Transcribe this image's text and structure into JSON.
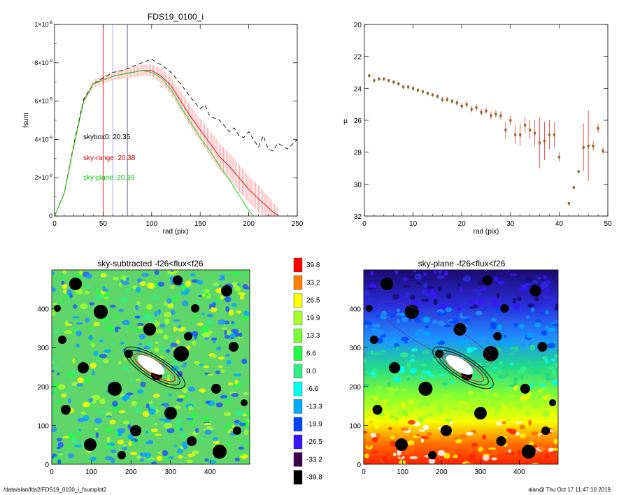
{
  "footer": {
    "left": "/data/alan/fds2/FDS19_0100_i_fsumplot2",
    "right": "alan@  Thu Oct 17 11:47:10 2019"
  },
  "chart_data": [
    {
      "type": "line",
      "title": "FDS19_0100_i",
      "xlabel": "rad (pix)",
      "ylabel": "fsum",
      "xlim": [
        0,
        250
      ],
      "ylim": [
        0,
        1e-08
      ],
      "xticks": [
        "0",
        "50",
        "100",
        "150",
        "200",
        "250"
      ],
      "yticks": [
        {
          "v": 0,
          "m": "0",
          "e": ""
        },
        {
          "v": 2e-09,
          "m": "2×10",
          "e": "-9"
        },
        {
          "v": 4e-09,
          "m": "4×10",
          "e": "-9"
        },
        {
          "v": 6e-09,
          "m": "6×10",
          "e": "-9"
        },
        {
          "v": 8e-09,
          "m": "8×10",
          "e": "-9"
        },
        {
          "v": 1e-08,
          "m": "1×10",
          "e": "-8"
        }
      ],
      "vlines": [
        {
          "x": 50,
          "color": "#ff0000"
        },
        {
          "x": 60,
          "color": "#9999ff"
        },
        {
          "x": 75,
          "color": "#555577"
        }
      ],
      "series": [
        {
          "style": "dashed",
          "color": "#000000",
          "x": [
            0,
            10,
            20,
            30,
            40,
            50,
            60,
            70,
            80,
            90,
            100,
            105,
            110,
            120,
            130,
            140,
            150,
            155,
            160,
            170,
            180,
            185,
            190,
            195,
            200,
            205,
            210,
            215,
            220,
            225,
            230,
            240,
            250
          ],
          "y": [
            0,
            1.2e-09,
            3.8e-09,
            6.1e-09,
            6.9e-09,
            7.2e-09,
            7.5e-09,
            7.6e-09,
            7.8e-09,
            8e-09,
            8.2e-09,
            8e-09,
            7.9e-09,
            7.5e-09,
            6.9e-09,
            6.2e-09,
            5.6e-09,
            5.8e-09,
            5.2e-09,
            5e-09,
            4.4e-09,
            4.6e-09,
            4.2e-09,
            4.1e-09,
            4.4e-09,
            4e-09,
            3.6e-09,
            4.2e-09,
            3.5e-09,
            3.4e-09,
            3.8e-09,
            3.5e-09,
            4e-09
          ]
        },
        {
          "style": "solid",
          "color": "#cc0000",
          "errcolor": "#ff9999",
          "x": [
            0,
            10,
            20,
            30,
            40,
            50,
            60,
            70,
            80,
            90,
            100,
            110,
            120,
            130,
            140,
            150,
            160,
            170,
            180,
            190,
            200,
            210,
            220,
            225,
            230
          ],
          "y": [
            0,
            1.2e-09,
            3.7e-09,
            6e-09,
            6.9e-09,
            7.1e-09,
            7.3e-09,
            7.4e-09,
            7.5e-09,
            7.6e-09,
            7.6e-09,
            7.3e-09,
            6.8e-09,
            6e-09,
            5.2e-09,
            4.5e-09,
            3.8e-09,
            3.1e-09,
            2.6e-09,
            2e-09,
            1.4e-09,
            9e-10,
            4.5e-10,
            2e-10,
            5e-11
          ],
          "err": [
            0,
            5e-11,
            1e-10,
            1.5e-10,
            2e-10,
            2e-10,
            2e-10,
            2.5e-10,
            2.5e-10,
            3e-10,
            3e-10,
            4e-10,
            4.5e-10,
            5e-10,
            5.5e-10,
            6e-10,
            6.5e-10,
            7e-10,
            7e-10,
            7e-10,
            7e-10,
            7e-10,
            6e-10,
            5e-10,
            4e-10
          ]
        },
        {
          "style": "solid",
          "color": "#00dd00",
          "x": [
            0,
            10,
            20,
            30,
            40,
            50,
            60,
            70,
            80,
            90,
            100,
            110,
            120,
            130,
            140,
            150,
            160,
            170,
            180,
            190,
            200,
            205
          ],
          "y": [
            0,
            1.2e-09,
            3.7e-09,
            6e-09,
            6.9e-09,
            7.1e-09,
            7.3e-09,
            7.4e-09,
            7.5e-09,
            7.6e-09,
            7.5e-09,
            7.2e-09,
            6.6e-09,
            5.7e-09,
            4.9e-09,
            4.1e-09,
            3.4e-09,
            2.6e-09,
            1.9e-09,
            1.1e-09,
            3e-10,
            0
          ]
        }
      ],
      "annotations": [
        {
          "text": "skybox0: 20.35",
          "color": "#000000"
        },
        {
          "text": "sky-range: 20.38",
          "color": "#dd0000"
        },
        {
          "text": "sky-plane: 20.39",
          "color": "#00cc00"
        }
      ]
    },
    {
      "type": "scatter",
      "title": "",
      "xlabel": "rad (pix)",
      "ylabel": "μ",
      "xlim": [
        0,
        50
      ],
      "ylim": [
        32,
        20
      ],
      "xticks": [
        "0",
        "10",
        "20",
        "30",
        "40",
        "50"
      ],
      "yticks": [
        "20",
        "22",
        "24",
        "26",
        "28",
        "30",
        "32"
      ],
      "points": {
        "x": [
          1,
          2,
          3,
          4,
          5,
          6,
          7,
          8,
          9,
          10,
          11,
          12,
          13,
          14,
          15,
          16,
          17,
          18,
          19,
          20,
          21,
          22,
          23,
          24,
          25,
          26,
          27,
          28,
          29,
          30,
          31,
          32,
          33,
          34,
          35,
          36,
          37,
          38,
          39,
          40,
          42,
          43,
          44,
          45,
          46,
          47,
          48,
          49
        ],
        "y": [
          23.2,
          23.5,
          23.4,
          23.4,
          23.5,
          23.6,
          23.7,
          23.9,
          23.9,
          24.0,
          24.1,
          24.2,
          24.3,
          24.4,
          24.5,
          24.7,
          24.7,
          24.8,
          24.9,
          25.1,
          25.0,
          25.3,
          25.2,
          25.5,
          25.4,
          25.7,
          25.6,
          25.7,
          26.6,
          26.0,
          26.9,
          26.9,
          26.3,
          26.6,
          26.8,
          27.4,
          27.3,
          26.9,
          26.9,
          28.3,
          31.2,
          30.2,
          29.2,
          27.7,
          27.6,
          27.6,
          26.5,
          27.9
        ],
        "err": [
          0.1,
          0.1,
          0.1,
          0.1,
          0.1,
          0.1,
          0.1,
          0.1,
          0.1,
          0.1,
          0.1,
          0.1,
          0.1,
          0.1,
          0.1,
          0.15,
          0.15,
          0.15,
          0.2,
          0.2,
          0.2,
          0.2,
          0.2,
          0.2,
          0.2,
          0.25,
          0.25,
          0.25,
          0.5,
          0.3,
          0.6,
          0.7,
          0.5,
          0.6,
          0.8,
          1.6,
          1.2,
          0.9,
          0.8,
          0.3,
          0,
          0,
          0,
          1.5,
          2.2,
          0.3,
          0.3,
          0.2
        ]
      }
    },
    {
      "type": "heatmap",
      "title": "sky-subtracted -f26<flux<f26",
      "xlim": [
        0,
        500
      ],
      "ylim": [
        0,
        500
      ],
      "xticks": [
        "0",
        "100",
        "200",
        "300",
        "400"
      ],
      "yticks": [
        "0",
        "100",
        "200",
        "300",
        "400"
      ],
      "background_gradient": "none"
    },
    {
      "type": "heatmap",
      "title": "sky-plane -f26<flux<f26",
      "xlim": [
        0,
        500
      ],
      "ylim": [
        0,
        500
      ],
      "xticks": [
        "0",
        "100",
        "200",
        "300",
        "400"
      ],
      "yticks": [
        "0",
        "100",
        "200",
        "300",
        "400"
      ],
      "background_gradient": "vertical"
    },
    {
      "type": "colorbar",
      "labels": [
        "39.8",
        "33.2",
        "26.5",
        "19.9",
        "13.3",
        "6.6",
        "0.0",
        "-6.6",
        "-13.3",
        "-19.9",
        "-26.5",
        "-33.2",
        "-39.8"
      ],
      "colors": [
        "#ff0000",
        "#ff7f00",
        "#ffff00",
        "#a8ff2a",
        "#7dff35",
        "#22ff44",
        "#33ee88",
        "#00ffee",
        "#00aaff",
        "#0044ff",
        "#3a14ff",
        "#400050",
        "#000000"
      ]
    }
  ]
}
